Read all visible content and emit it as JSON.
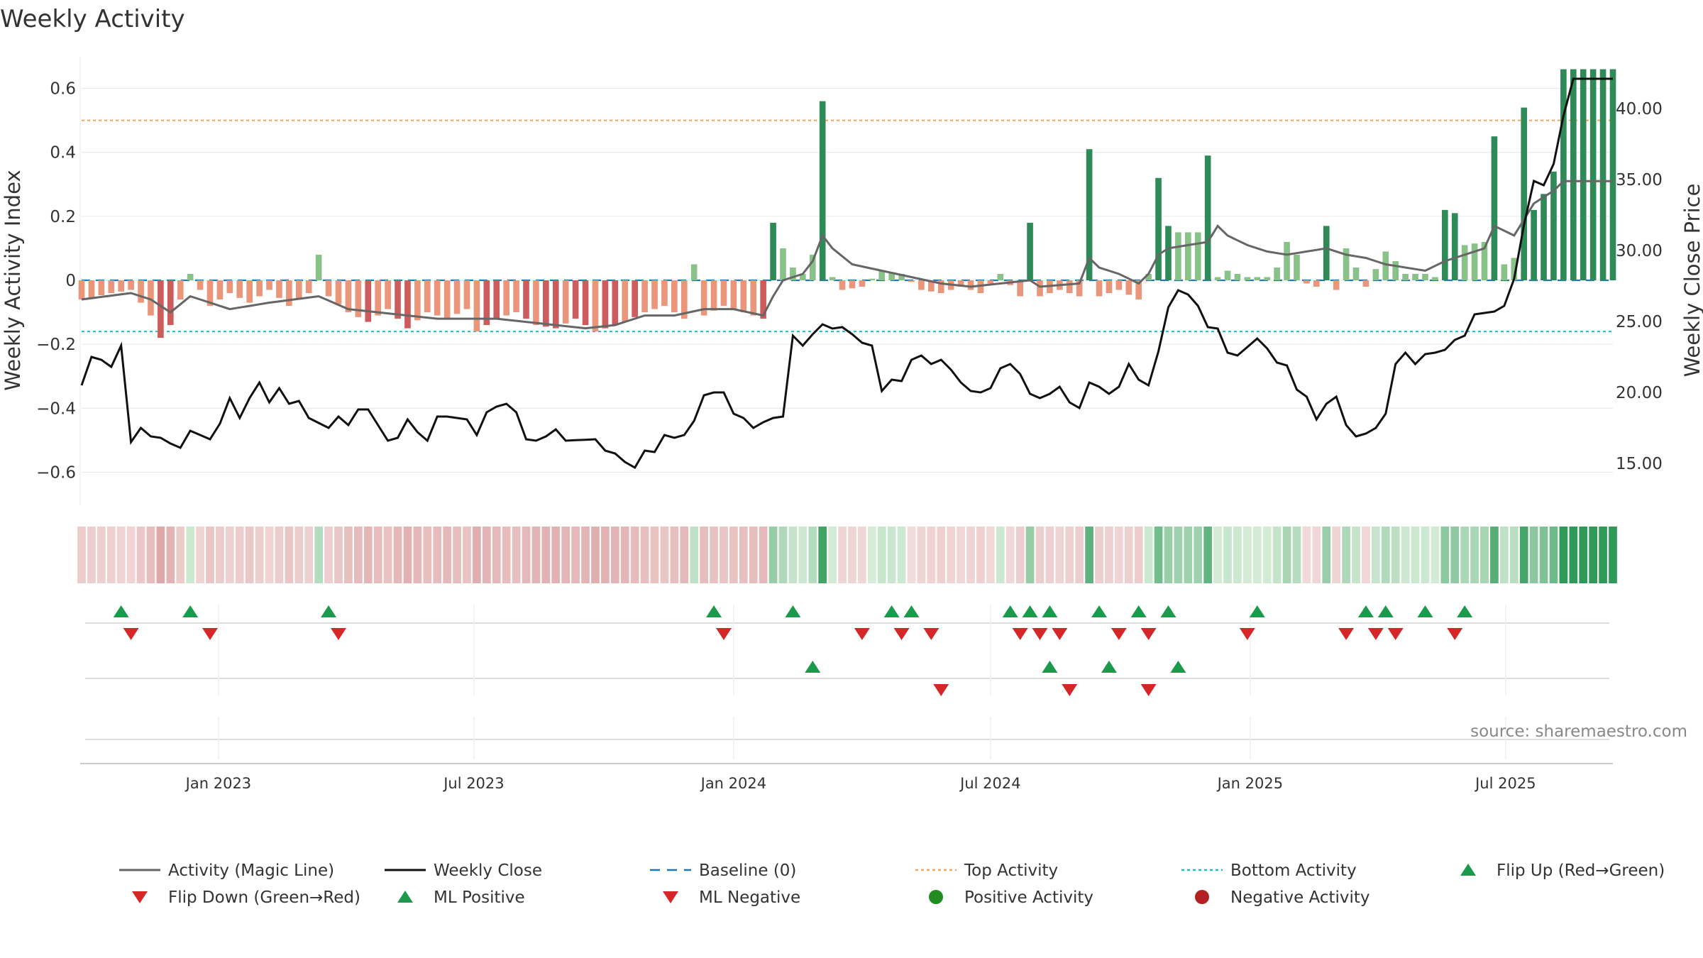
{
  "colors": {
    "pos_strong": "#2e8b57",
    "pos_light": "#88c288",
    "neg_strong": "#cd5c5c",
    "neg_light": "#e9967a",
    "magic_line": "#666666",
    "close_line": "#111111",
    "baseline": "#1f77b4",
    "top_line": "#f4a460",
    "bottom_line": "#17becf",
    "marker_up": "#1a9a4a",
    "marker_down": "#d62728",
    "legend_pos_dot": "#228b22",
    "legend_neg_dot": "#b22222",
    "grid": "#e6e6e6"
  },
  "chart_data": {
    "type": "bar",
    "title": "Weekly Activity",
    "ylabel": "Weekly Activity Index",
    "y2label": "Weekly Close Price",
    "source": "source: sharemaestro.com",
    "ylim": [
      -0.71,
      0.71
    ],
    "y2lim": [
      11.9,
      43.9
    ],
    "yticks": [
      0.6,
      0.4,
      0.2,
      0,
      -0.2,
      -0.4,
      -0.6
    ],
    "ytick_labels": [
      "0.6",
      "0.4",
      "0.2",
      "0",
      "−0.2",
      "−0.4",
      "−0.6"
    ],
    "y2ticks": [
      40,
      35,
      30,
      25,
      20,
      15
    ],
    "y2tick_labels": [
      "40.00",
      "35.00",
      "30.00",
      "25.00",
      "20.00",
      "15.00"
    ],
    "x_start": "2022-09-26",
    "x_end": "2025-09-15",
    "xtick_dates": [
      "2023-01-01",
      "2023-07-01",
      "2024-01-01",
      "2024-07-01",
      "2025-01-01",
      "2025-07-01"
    ],
    "xtick_labels": [
      "Jan 2023",
      "Jul 2023",
      "Jan 2024",
      "Jul 2024",
      "Jan 2025",
      "Jul 2025"
    ],
    "top_activity": 0.5,
    "bottom_activity": -0.16,
    "baseline": 0,
    "anchors_activity": [
      [
        0,
        -0.06
      ],
      [
        3,
        -0.04
      ],
      [
        5,
        -0.03
      ],
      [
        7,
        -0.11
      ],
      [
        8,
        -0.18
      ],
      [
        9,
        -0.14
      ],
      [
        11,
        0.02
      ],
      [
        13,
        -0.08
      ],
      [
        15,
        -0.04
      ],
      [
        17,
        -0.07
      ],
      [
        19,
        -0.03
      ],
      [
        21,
        -0.08
      ],
      [
        23,
        -0.04
      ],
      [
        24,
        0.08
      ],
      [
        25,
        -0.05
      ],
      [
        27,
        -0.1
      ],
      [
        29,
        -0.13
      ],
      [
        31,
        -0.09
      ],
      [
        33,
        -0.15
      ],
      [
        35,
        -0.1
      ],
      [
        37,
        -0.12
      ],
      [
        39,
        -0.09
      ],
      [
        40,
        -0.16
      ],
      [
        42,
        -0.12
      ],
      [
        44,
        -0.1
      ],
      [
        46,
        -0.14
      ],
      [
        48,
        -0.15
      ],
      [
        50,
        -0.12
      ],
      [
        52,
        -0.16
      ],
      [
        55,
        -0.13
      ],
      [
        57,
        -0.1
      ],
      [
        59,
        -0.08
      ],
      [
        61,
        -0.12
      ],
      [
        62,
        0.05
      ],
      [
        63,
        -0.11
      ],
      [
        65,
        -0.08
      ],
      [
        67,
        -0.1
      ],
      [
        69,
        -0.12
      ],
      [
        70,
        0.18
      ],
      [
        71,
        0.1
      ],
      [
        72,
        0.04
      ],
      [
        73,
        0.02
      ],
      [
        74,
        0.08
      ],
      [
        75,
        0.56
      ],
      [
        76,
        0.01
      ],
      [
        77,
        -0.03
      ],
      [
        79,
        -0.02
      ],
      [
        81,
        0.03
      ],
      [
        83,
        0.02
      ],
      [
        85,
        -0.03
      ],
      [
        87,
        -0.04
      ],
      [
        89,
        -0.02
      ],
      [
        91,
        -0.04
      ],
      [
        93,
        0.02
      ],
      [
        95,
        -0.05
      ],
      [
        96,
        0.18
      ],
      [
        97,
        -0.05
      ],
      [
        99,
        -0.03
      ],
      [
        101,
        -0.05
      ],
      [
        102,
        0.41
      ],
      [
        103,
        -0.05
      ],
      [
        105,
        -0.03
      ],
      [
        107,
        -0.06
      ],
      [
        108,
        0.02
      ],
      [
        109,
        0.32
      ],
      [
        110,
        0.17
      ],
      [
        111,
        0.15
      ],
      [
        113,
        0.15
      ],
      [
        114,
        0.39
      ],
      [
        115,
        0.01
      ],
      [
        116,
        0.03
      ],
      [
        118,
        0.01
      ],
      [
        120,
        0.01
      ],
      [
        121,
        0.04
      ],
      [
        122,
        0.12
      ],
      [
        123,
        0.08
      ],
      [
        124,
        -0.01
      ],
      [
        125,
        -0.02
      ],
      [
        126,
        0.17
      ],
      [
        127,
        -0.03
      ],
      [
        128,
        0.1
      ],
      [
        130,
        -0.02
      ],
      [
        132,
        0.09
      ],
      [
        133,
        0.06
      ],
      [
        134,
        0.02
      ],
      [
        136,
        0.02
      ],
      [
        137,
        0.01
      ],
      [
        138,
        0.22
      ],
      [
        139,
        0.21
      ],
      [
        140,
        0.11
      ],
      [
        142,
        0.12
      ],
      [
        143,
        0.45
      ],
      [
        144,
        0.05
      ],
      [
        145,
        0.07
      ],
      [
        146,
        0.54
      ],
      [
        147,
        0.22
      ],
      [
        148,
        0.27
      ],
      [
        149,
        0.34
      ],
      [
        150,
        0.66
      ]
    ],
    "anchors_magic": [
      [
        0,
        -0.06
      ],
      [
        5,
        -0.04
      ],
      [
        7,
        -0.06
      ],
      [
        9,
        -0.1
      ],
      [
        11,
        -0.05
      ],
      [
        15,
        -0.09
      ],
      [
        19,
        -0.07
      ],
      [
        24,
        -0.05
      ],
      [
        27,
        -0.09
      ],
      [
        30,
        -0.1
      ],
      [
        33,
        -0.11
      ],
      [
        36,
        -0.12
      ],
      [
        39,
        -0.12
      ],
      [
        42,
        -0.12
      ],
      [
        45,
        -0.13
      ],
      [
        48,
        -0.14
      ],
      [
        51,
        -0.15
      ],
      [
        54,
        -0.14
      ],
      [
        57,
        -0.11
      ],
      [
        60,
        -0.11
      ],
      [
        63,
        -0.09
      ],
      [
        66,
        -0.09
      ],
      [
        69,
        -0.11
      ],
      [
        70,
        -0.05
      ],
      [
        71,
        0
      ],
      [
        73,
        0.02
      ],
      [
        74,
        0.06
      ],
      [
        75,
        0.14
      ],
      [
        76,
        0.1
      ],
      [
        78,
        0.05
      ],
      [
        81,
        0.03
      ],
      [
        84,
        0.01
      ],
      [
        87,
        -0.01
      ],
      [
        90,
        -0.02
      ],
      [
        93,
        -0.01
      ],
      [
        96,
        0
      ],
      [
        97,
        -0.02
      ],
      [
        101,
        -0.01
      ],
      [
        102,
        0.07
      ],
      [
        103,
        0.04
      ],
      [
        105,
        0.02
      ],
      [
        107,
        -0.01
      ],
      [
        108,
        0.02
      ],
      [
        109,
        0.08
      ],
      [
        110,
        0.1
      ],
      [
        112,
        0.11
      ],
      [
        114,
        0.12
      ],
      [
        115,
        0.17
      ],
      [
        116,
        0.14
      ],
      [
        118,
        0.11
      ],
      [
        120,
        0.09
      ],
      [
        122,
        0.08
      ],
      [
        124,
        0.09
      ],
      [
        126,
        0.1
      ],
      [
        128,
        0.08
      ],
      [
        130,
        0.07
      ],
      [
        132,
        0.05
      ],
      [
        134,
        0.04
      ],
      [
        136,
        0.03
      ],
      [
        138,
        0.06
      ],
      [
        140,
        0.08
      ],
      [
        142,
        0.1
      ],
      [
        143,
        0.17
      ],
      [
        145,
        0.14
      ],
      [
        147,
        0.24
      ],
      [
        149,
        0.28
      ],
      [
        150,
        0.31
      ]
    ],
    "anchors_close": [
      [
        0,
        20.5
      ],
      [
        1,
        22.5
      ],
      [
        2,
        22.3
      ],
      [
        3,
        21.8
      ],
      [
        4,
        23.3
      ],
      [
        5,
        16.5
      ],
      [
        6,
        17.5
      ],
      [
        7,
        16.9
      ],
      [
        8,
        16.8
      ],
      [
        9,
        16.4
      ],
      [
        10,
        16.1
      ],
      [
        11,
        17.3
      ],
      [
        13,
        16.7
      ],
      [
        14,
        17.8
      ],
      [
        15,
        19.6
      ],
      [
        16,
        18.2
      ],
      [
        17,
        19.6
      ],
      [
        18,
        20.7
      ],
      [
        19,
        19.3
      ],
      [
        20,
        20.3
      ],
      [
        21,
        19.2
      ],
      [
        22,
        19.4
      ],
      [
        23,
        18.2
      ],
      [
        25,
        17.5
      ],
      [
        26,
        18.3
      ],
      [
        27,
        17.7
      ],
      [
        28,
        18.8
      ],
      [
        29,
        18.8
      ],
      [
        30,
        17.7
      ],
      [
        31,
        16.6
      ],
      [
        32,
        16.8
      ],
      [
        33,
        18.1
      ],
      [
        34,
        17.2
      ],
      [
        35,
        16.6
      ],
      [
        36,
        18.3
      ],
      [
        37,
        18.3
      ],
      [
        39,
        18.1
      ],
      [
        40,
        17.0
      ],
      [
        41,
        18.6
      ],
      [
        42,
        19.0
      ],
      [
        43,
        19.2
      ],
      [
        44,
        18.6
      ],
      [
        45,
        16.7
      ],
      [
        46,
        16.6
      ],
      [
        47,
        16.9
      ],
      [
        48,
        17.4
      ],
      [
        49,
        16.6
      ],
      [
        52,
        16.7
      ],
      [
        53,
        15.9
      ],
      [
        54,
        15.7
      ],
      [
        55,
        15.1
      ],
      [
        56,
        14.7
      ],
      [
        57,
        15.9
      ],
      [
        58,
        15.8
      ],
      [
        59,
        17.0
      ],
      [
        60,
        16.8
      ],
      [
        61,
        17.0
      ],
      [
        62,
        18.0
      ],
      [
        63,
        19.8
      ],
      [
        64,
        20.0
      ],
      [
        65,
        20.0
      ],
      [
        66,
        18.5
      ],
      [
        67,
        18.2
      ],
      [
        68,
        17.5
      ],
      [
        69,
        17.9
      ],
      [
        70,
        18.2
      ],
      [
        71,
        18.3
      ],
      [
        72,
        24.0
      ],
      [
        73,
        23.3
      ],
      [
        74,
        24.1
      ],
      [
        75,
        24.8
      ],
      [
        76,
        24.5
      ],
      [
        77,
        24.6
      ],
      [
        78,
        24.1
      ],
      [
        79,
        23.5
      ],
      [
        80,
        23.3
      ],
      [
        81,
        20.1
      ],
      [
        82,
        20.9
      ],
      [
        83,
        20.8
      ],
      [
        84,
        22.3
      ],
      [
        85,
        22.6
      ],
      [
        86,
        22.0
      ],
      [
        87,
        22.3
      ],
      [
        88,
        21.6
      ],
      [
        89,
        20.7
      ],
      [
        90,
        20.1
      ],
      [
        91,
        20.0
      ],
      [
        92,
        20.3
      ],
      [
        93,
        21.7
      ],
      [
        94,
        22.0
      ],
      [
        95,
        21.3
      ],
      [
        96,
        19.9
      ],
      [
        97,
        19.6
      ],
      [
        98,
        19.9
      ],
      [
        99,
        20.4
      ],
      [
        100,
        19.3
      ],
      [
        101,
        18.9
      ],
      [
        102,
        20.7
      ],
      [
        103,
        20.4
      ],
      [
        104,
        19.9
      ],
      [
        105,
        20.4
      ],
      [
        106,
        22.0
      ],
      [
        107,
        20.9
      ],
      [
        108,
        20.5
      ],
      [
        109,
        22.9
      ],
      [
        110,
        26.0
      ],
      [
        111,
        27.2
      ],
      [
        112,
        26.9
      ],
      [
        113,
        26.1
      ],
      [
        114,
        24.6
      ],
      [
        115,
        24.5
      ],
      [
        116,
        22.8
      ],
      [
        117,
        22.6
      ],
      [
        118,
        23.2
      ],
      [
        119,
        23.8
      ],
      [
        120,
        23.1
      ],
      [
        121,
        22.1
      ],
      [
        122,
        21.9
      ],
      [
        123,
        20.2
      ],
      [
        124,
        19.7
      ],
      [
        125,
        18.1
      ],
      [
        126,
        19.2
      ],
      [
        127,
        19.7
      ],
      [
        128,
        17.7
      ],
      [
        129,
        16.9
      ],
      [
        130,
        17.1
      ],
      [
        131,
        17.5
      ],
      [
        132,
        18.5
      ],
      [
        133,
        22.0
      ],
      [
        134,
        22.8
      ],
      [
        135,
        22.0
      ],
      [
        136,
        22.7
      ],
      [
        137,
        22.8
      ],
      [
        138,
        23.0
      ],
      [
        139,
        23.7
      ],
      [
        140,
        24.0
      ],
      [
        141,
        25.5
      ],
      [
        142,
        25.6
      ],
      [
        143,
        25.7
      ],
      [
        144,
        26.1
      ],
      [
        145,
        28.0
      ],
      [
        146,
        31.8
      ],
      [
        147,
        34.9
      ],
      [
        148,
        34.6
      ],
      [
        149,
        36.1
      ],
      [
        150,
        39.5
      ],
      [
        151,
        42.1
      ]
    ],
    "flip_up": [
      4,
      11,
      25,
      64,
      72,
      82,
      84,
      94,
      96,
      98,
      103,
      107,
      110,
      119,
      130,
      132,
      136,
      140
    ],
    "flip_down": [
      5,
      13,
      26,
      65,
      79,
      83,
      86,
      95,
      97,
      99,
      105,
      108,
      118,
      128,
      131,
      133,
      139
    ],
    "ml_positive": [
      74,
      98,
      104,
      111
    ],
    "ml_negative": [
      87,
      100,
      108
    ],
    "legend": [
      {
        "label": "Activity (Magic Line)",
        "kind": "line-gray"
      },
      {
        "label": "Weekly Close",
        "kind": "line-black"
      },
      {
        "label": "Baseline (0)",
        "kind": "line-dashed"
      },
      {
        "label": "Top Activity",
        "kind": "line-dotted-orange"
      },
      {
        "label": "Bottom Activity",
        "kind": "line-dotted-cyan"
      },
      {
        "label": "Flip Up (Red→Green)",
        "kind": "tri-up"
      },
      {
        "label": "Flip Down (Green→Red)",
        "kind": "tri-down"
      },
      {
        "label": "ML Positive",
        "kind": "tri-up"
      },
      {
        "label": "ML Negative",
        "kind": "tri-down"
      },
      {
        "label": "Positive Activity",
        "kind": "dot-green"
      },
      {
        "label": "Negative Activity",
        "kind": "dot-red"
      }
    ]
  }
}
